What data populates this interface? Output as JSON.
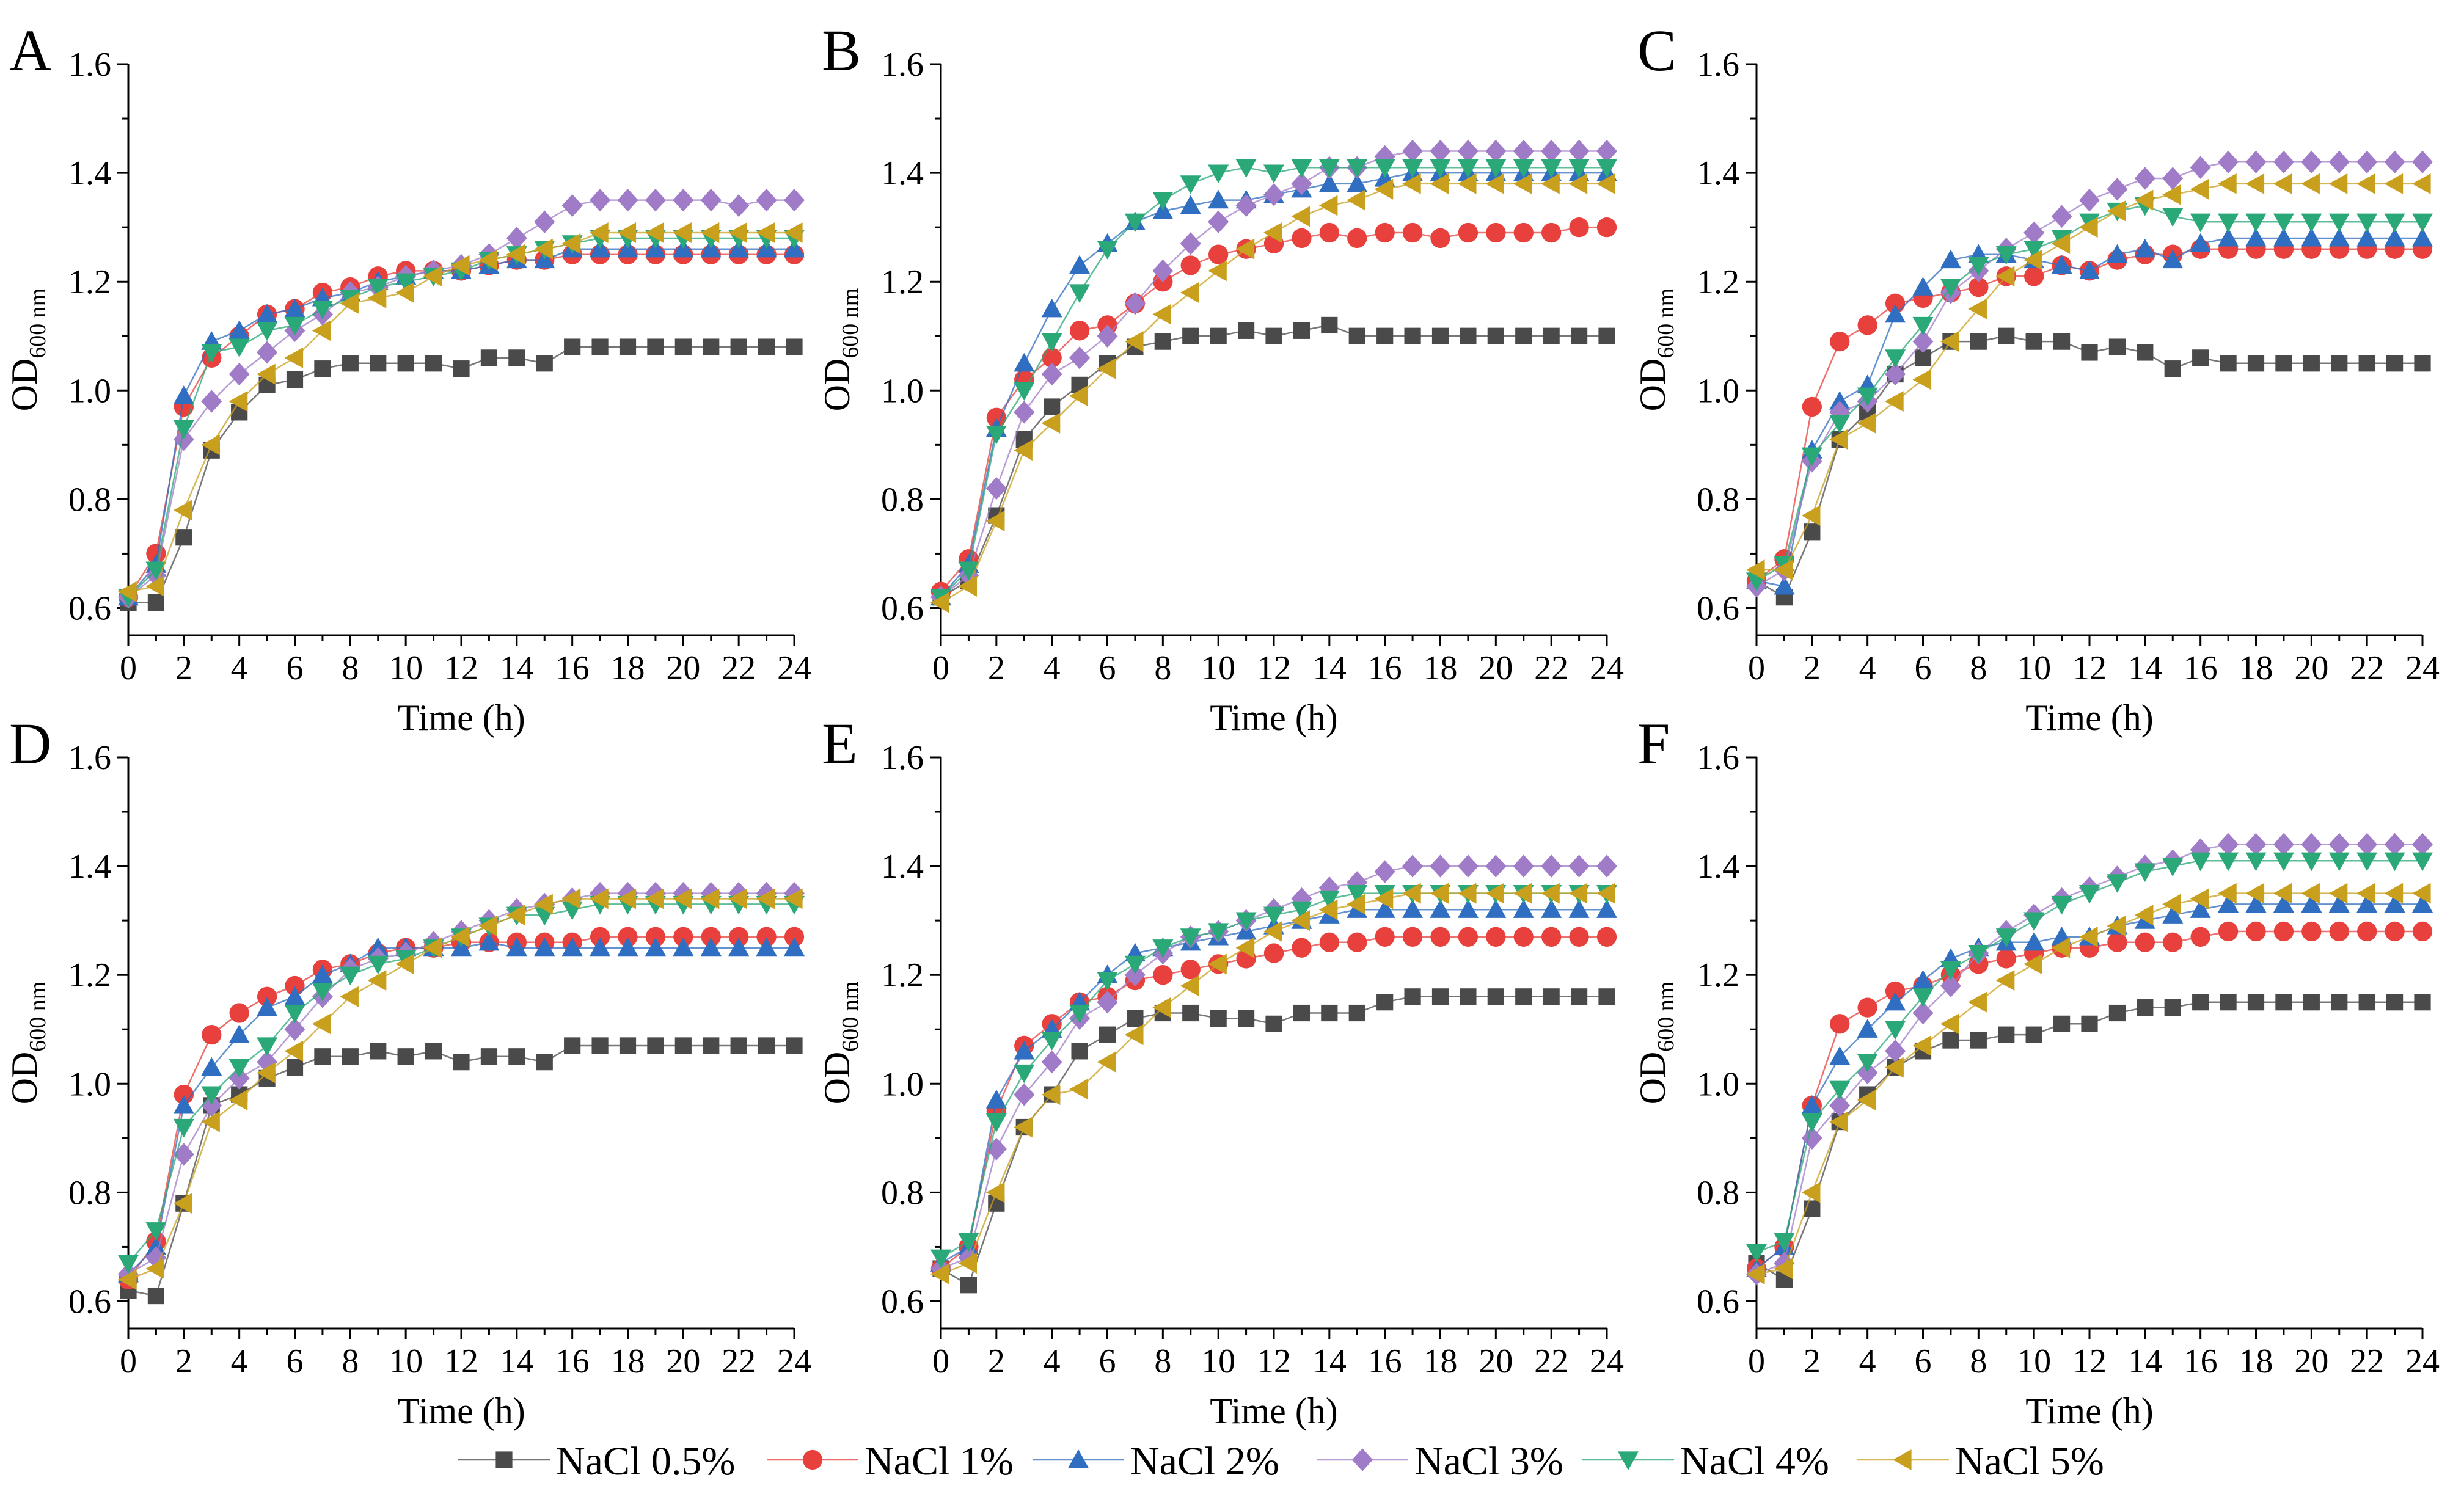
{
  "chart_data": {
    "type": "line",
    "x": [
      0,
      1,
      2,
      3,
      4,
      5,
      6,
      7,
      8,
      9,
      10,
      11,
      12,
      13,
      14,
      15,
      16,
      17,
      18,
      19,
      20,
      21,
      22,
      23,
      24
    ],
    "x_ticks": [
      "0",
      "2",
      "4",
      "6",
      "8",
      "10",
      "12",
      "14",
      "16",
      "18",
      "20",
      "22",
      "24"
    ],
    "y_ticks": [
      "0.6",
      "0.8",
      "1.0",
      "1.2",
      "1.4",
      "1.6"
    ],
    "xlim": [
      0,
      24
    ],
    "ylim": [
      0.55,
      1.6
    ],
    "xlabel": "Time (h)",
    "ylabel": {
      "main": "OD",
      "sub": "600 nm"
    },
    "legend": [
      {
        "name": "NaCl 0.5%",
        "color": "#4a4a4a",
        "marker": "square"
      },
      {
        "name": "NaCl 1%",
        "color": "#e8403c",
        "marker": "circle"
      },
      {
        "name": "NaCl 2%",
        "color": "#2f6ec0",
        "marker": "triangle-up"
      },
      {
        "name": "NaCl 3%",
        "color": "#a07cc8",
        "marker": "diamond"
      },
      {
        "name": "NaCl 4%",
        "color": "#2aa878",
        "marker": "triangle-down"
      },
      {
        "name": "NaCl 5%",
        "color": "#c9a01e",
        "marker": "triangle-left"
      }
    ],
    "panels": [
      {
        "label": "A",
        "series": [
          [
            0.61,
            0.61,
            0.73,
            0.89,
            0.96,
            1.01,
            1.02,
            1.04,
            1.05,
            1.05,
            1.05,
            1.05,
            1.04,
            1.06,
            1.06,
            1.05,
            1.08,
            1.08,
            1.08,
            1.08,
            1.08,
            1.08,
            1.08,
            1.08,
            1.08
          ],
          [
            0.62,
            0.7,
            0.97,
            1.06,
            1.1,
            1.14,
            1.15,
            1.18,
            1.19,
            1.21,
            1.22,
            1.22,
            1.22,
            1.23,
            1.24,
            1.24,
            1.25,
            1.25,
            1.25,
            1.25,
            1.25,
            1.25,
            1.25,
            1.25,
            1.25
          ],
          [
            0.62,
            0.68,
            0.99,
            1.09,
            1.11,
            1.14,
            1.15,
            1.17,
            1.18,
            1.2,
            1.21,
            1.22,
            1.22,
            1.23,
            1.24,
            1.24,
            1.26,
            1.26,
            1.26,
            1.26,
            1.26,
            1.26,
            1.26,
            1.26,
            1.26
          ],
          [
            0.62,
            0.66,
            0.91,
            0.98,
            1.03,
            1.07,
            1.11,
            1.14,
            1.18,
            1.19,
            1.21,
            1.22,
            1.23,
            1.25,
            1.28,
            1.31,
            1.34,
            1.35,
            1.35,
            1.35,
            1.35,
            1.35,
            1.34,
            1.35,
            1.35
          ],
          [
            0.62,
            0.67,
            0.93,
            1.07,
            1.08,
            1.11,
            1.12,
            1.15,
            1.17,
            1.19,
            1.2,
            1.21,
            1.22,
            1.24,
            1.25,
            1.26,
            1.27,
            1.28,
            1.28,
            1.28,
            1.28,
            1.28,
            1.28,
            1.28,
            1.28
          ],
          [
            0.63,
            0.64,
            0.78,
            0.9,
            0.98,
            1.03,
            1.06,
            1.11,
            1.16,
            1.17,
            1.18,
            1.21,
            1.23,
            1.24,
            1.25,
            1.26,
            1.27,
            1.29,
            1.29,
            1.29,
            1.29,
            1.29,
            1.29,
            1.29,
            1.29
          ]
        ]
      },
      {
        "label": "B",
        "series": [
          [
            0.62,
            0.65,
            0.77,
            0.91,
            0.97,
            1.01,
            1.05,
            1.08,
            1.09,
            1.1,
            1.1,
            1.11,
            1.1,
            1.11,
            1.12,
            1.1,
            1.1,
            1.1,
            1.1,
            1.1,
            1.1,
            1.1,
            1.1,
            1.1,
            1.1
          ],
          [
            0.63,
            0.69,
            0.95,
            1.02,
            1.06,
            1.11,
            1.12,
            1.16,
            1.2,
            1.23,
            1.25,
            1.26,
            1.27,
            1.28,
            1.29,
            1.28,
            1.29,
            1.29,
            1.28,
            1.29,
            1.29,
            1.29,
            1.29,
            1.3,
            1.3
          ],
          [
            0.62,
            0.68,
            0.93,
            1.05,
            1.15,
            1.23,
            1.27,
            1.31,
            1.33,
            1.34,
            1.35,
            1.35,
            1.36,
            1.37,
            1.38,
            1.38,
            1.39,
            1.4,
            1.4,
            1.4,
            1.4,
            1.4,
            1.4,
            1.4,
            1.4
          ],
          [
            0.62,
            0.66,
            0.82,
            0.96,
            1.03,
            1.06,
            1.1,
            1.16,
            1.22,
            1.27,
            1.31,
            1.34,
            1.36,
            1.38,
            1.41,
            1.41,
            1.43,
            1.44,
            1.44,
            1.44,
            1.44,
            1.44,
            1.44,
            1.44,
            1.44
          ],
          [
            0.62,
            0.67,
            0.92,
            1.0,
            1.09,
            1.18,
            1.26,
            1.31,
            1.35,
            1.38,
            1.4,
            1.41,
            1.4,
            1.41,
            1.41,
            1.41,
            1.41,
            1.41,
            1.41,
            1.41,
            1.41,
            1.41,
            1.41,
            1.41,
            1.41
          ],
          [
            0.61,
            0.64,
            0.76,
            0.89,
            0.94,
            0.99,
            1.04,
            1.09,
            1.14,
            1.18,
            1.22,
            1.26,
            1.29,
            1.32,
            1.34,
            1.35,
            1.37,
            1.38,
            1.38,
            1.38,
            1.38,
            1.38,
            1.38,
            1.38,
            1.38
          ]
        ]
      },
      {
        "label": "C",
        "series": [
          [
            0.65,
            0.62,
            0.74,
            0.91,
            0.96,
            1.03,
            1.06,
            1.09,
            1.09,
            1.1,
            1.09,
            1.09,
            1.07,
            1.08,
            1.07,
            1.04,
            1.06,
            1.05,
            1.05,
            1.05,
            1.05,
            1.05,
            1.05,
            1.05,
            1.05
          ],
          [
            0.65,
            0.69,
            0.97,
            1.09,
            1.12,
            1.16,
            1.17,
            1.18,
            1.19,
            1.21,
            1.21,
            1.23,
            1.22,
            1.24,
            1.25,
            1.25,
            1.26,
            1.26,
            1.26,
            1.26,
            1.26,
            1.26,
            1.26,
            1.26,
            1.26
          ],
          [
            0.65,
            0.64,
            0.89,
            0.98,
            1.01,
            1.14,
            1.19,
            1.24,
            1.25,
            1.25,
            1.24,
            1.23,
            1.22,
            1.25,
            1.26,
            1.24,
            1.27,
            1.28,
            1.28,
            1.28,
            1.28,
            1.28,
            1.28,
            1.28,
            1.28
          ],
          [
            0.64,
            0.67,
            0.87,
            0.96,
            0.98,
            1.03,
            1.09,
            1.18,
            1.22,
            1.26,
            1.29,
            1.32,
            1.35,
            1.37,
            1.39,
            1.39,
            1.41,
            1.42,
            1.42,
            1.42,
            1.42,
            1.42,
            1.42,
            1.42,
            1.42
          ],
          [
            0.65,
            0.68,
            0.88,
            0.94,
            0.99,
            1.06,
            1.12,
            1.19,
            1.23,
            1.25,
            1.26,
            1.28,
            1.31,
            1.33,
            1.34,
            1.32,
            1.31,
            1.31,
            1.31,
            1.31,
            1.31,
            1.31,
            1.31,
            1.31,
            1.31
          ],
          [
            0.67,
            0.67,
            0.77,
            0.91,
            0.94,
            0.98,
            1.02,
            1.09,
            1.15,
            1.21,
            1.24,
            1.27,
            1.3,
            1.33,
            1.35,
            1.36,
            1.37,
            1.38,
            1.38,
            1.38,
            1.38,
            1.38,
            1.38,
            1.38,
            1.38
          ]
        ]
      },
      {
        "label": "D",
        "series": [
          [
            0.62,
            0.61,
            0.78,
            0.96,
            0.98,
            1.01,
            1.03,
            1.05,
            1.05,
            1.06,
            1.05,
            1.06,
            1.04,
            1.05,
            1.05,
            1.04,
            1.07,
            1.07,
            1.07,
            1.07,
            1.07,
            1.07,
            1.07,
            1.07,
            1.07
          ],
          [
            0.64,
            0.71,
            0.98,
            1.09,
            1.13,
            1.16,
            1.18,
            1.21,
            1.22,
            1.24,
            1.25,
            1.25,
            1.26,
            1.26,
            1.26,
            1.26,
            1.26,
            1.27,
            1.27,
            1.27,
            1.27,
            1.27,
            1.27,
            1.27,
            1.27
          ],
          [
            0.65,
            0.7,
            0.96,
            1.03,
            1.09,
            1.14,
            1.16,
            1.2,
            1.22,
            1.25,
            1.25,
            1.25,
            1.25,
            1.26,
            1.25,
            1.25,
            1.25,
            1.25,
            1.25,
            1.25,
            1.25,
            1.25,
            1.25,
            1.25,
            1.25
          ],
          [
            0.65,
            0.68,
            0.87,
            0.96,
            1.01,
            1.04,
            1.1,
            1.16,
            1.21,
            1.23,
            1.24,
            1.26,
            1.28,
            1.3,
            1.32,
            1.33,
            1.34,
            1.35,
            1.35,
            1.35,
            1.35,
            1.35,
            1.35,
            1.35,
            1.35
          ],
          [
            0.67,
            0.73,
            0.92,
            0.98,
            1.03,
            1.07,
            1.13,
            1.17,
            1.2,
            1.22,
            1.23,
            1.25,
            1.27,
            1.29,
            1.31,
            1.31,
            1.32,
            1.33,
            1.33,
            1.33,
            1.33,
            1.33,
            1.33,
            1.33,
            1.33
          ],
          [
            0.64,
            0.66,
            0.78,
            0.93,
            0.97,
            1.02,
            1.06,
            1.11,
            1.16,
            1.19,
            1.22,
            1.25,
            1.27,
            1.29,
            1.31,
            1.33,
            1.34,
            1.34,
            1.34,
            1.34,
            1.34,
            1.34,
            1.34,
            1.34,
            1.34
          ]
        ]
      },
      {
        "label": "E",
        "series": [
          [
            0.66,
            0.63,
            0.78,
            0.92,
            0.98,
            1.06,
            1.09,
            1.12,
            1.13,
            1.13,
            1.12,
            1.12,
            1.11,
            1.13,
            1.13,
            1.13,
            1.15,
            1.16,
            1.16,
            1.16,
            1.16,
            1.16,
            1.16,
            1.16,
            1.16
          ],
          [
            0.66,
            0.7,
            0.95,
            1.07,
            1.11,
            1.15,
            1.16,
            1.19,
            1.2,
            1.21,
            1.22,
            1.23,
            1.24,
            1.25,
            1.26,
            1.26,
            1.27,
            1.27,
            1.27,
            1.27,
            1.27,
            1.27,
            1.27,
            1.27,
            1.27
          ],
          [
            0.67,
            0.7,
            0.97,
            1.06,
            1.1,
            1.15,
            1.2,
            1.24,
            1.25,
            1.26,
            1.27,
            1.28,
            1.29,
            1.3,
            1.31,
            1.32,
            1.32,
            1.32,
            1.32,
            1.32,
            1.32,
            1.32,
            1.32,
            1.32,
            1.32
          ],
          [
            0.66,
            0.68,
            0.88,
            0.98,
            1.04,
            1.12,
            1.15,
            1.2,
            1.24,
            1.27,
            1.28,
            1.3,
            1.32,
            1.34,
            1.36,
            1.37,
            1.39,
            1.4,
            1.4,
            1.4,
            1.4,
            1.4,
            1.4,
            1.4,
            1.4
          ],
          [
            0.68,
            0.71,
            0.93,
            1.02,
            1.08,
            1.13,
            1.19,
            1.22,
            1.25,
            1.27,
            1.28,
            1.3,
            1.31,
            1.32,
            1.34,
            1.35,
            1.35,
            1.35,
            1.35,
            1.35,
            1.35,
            1.35,
            1.35,
            1.35,
            1.35
          ],
          [
            0.65,
            0.67,
            0.8,
            0.92,
            0.98,
            0.99,
            1.04,
            1.09,
            1.14,
            1.18,
            1.22,
            1.25,
            1.28,
            1.3,
            1.32,
            1.33,
            1.34,
            1.35,
            1.35,
            1.35,
            1.35,
            1.35,
            1.35,
            1.35,
            1.35
          ]
        ]
      },
      {
        "label": "F",
        "series": [
          [
            0.67,
            0.64,
            0.77,
            0.93,
            0.98,
            1.03,
            1.06,
            1.08,
            1.08,
            1.09,
            1.09,
            1.11,
            1.11,
            1.13,
            1.14,
            1.14,
            1.15,
            1.15,
            1.15,
            1.15,
            1.15,
            1.15,
            1.15,
            1.15,
            1.15
          ],
          [
            0.66,
            0.7,
            0.96,
            1.11,
            1.14,
            1.17,
            1.18,
            1.2,
            1.22,
            1.23,
            1.24,
            1.25,
            1.25,
            1.26,
            1.26,
            1.26,
            1.27,
            1.28,
            1.28,
            1.28,
            1.28,
            1.28,
            1.28,
            1.28,
            1.28
          ],
          [
            0.66,
            0.7,
            0.96,
            1.05,
            1.1,
            1.15,
            1.19,
            1.23,
            1.25,
            1.26,
            1.26,
            1.27,
            1.27,
            1.29,
            1.3,
            1.31,
            1.32,
            1.33,
            1.33,
            1.33,
            1.33,
            1.33,
            1.33,
            1.33,
            1.33
          ],
          [
            0.65,
            0.67,
            0.9,
            0.96,
            1.02,
            1.06,
            1.13,
            1.18,
            1.24,
            1.28,
            1.31,
            1.34,
            1.36,
            1.38,
            1.4,
            1.41,
            1.43,
            1.44,
            1.44,
            1.44,
            1.44,
            1.44,
            1.44,
            1.44,
            1.44
          ],
          [
            0.69,
            0.71,
            0.93,
            0.99,
            1.04,
            1.1,
            1.16,
            1.21,
            1.24,
            1.27,
            1.3,
            1.33,
            1.35,
            1.37,
            1.39,
            1.4,
            1.41,
            1.41,
            1.41,
            1.41,
            1.41,
            1.41,
            1.41,
            1.41,
            1.41
          ],
          [
            0.65,
            0.66,
            0.8,
            0.93,
            0.97,
            1.03,
            1.07,
            1.11,
            1.15,
            1.19,
            1.22,
            1.25,
            1.27,
            1.29,
            1.31,
            1.33,
            1.34,
            1.35,
            1.35,
            1.35,
            1.35,
            1.35,
            1.35,
            1.35,
            1.35
          ]
        ]
      }
    ]
  }
}
